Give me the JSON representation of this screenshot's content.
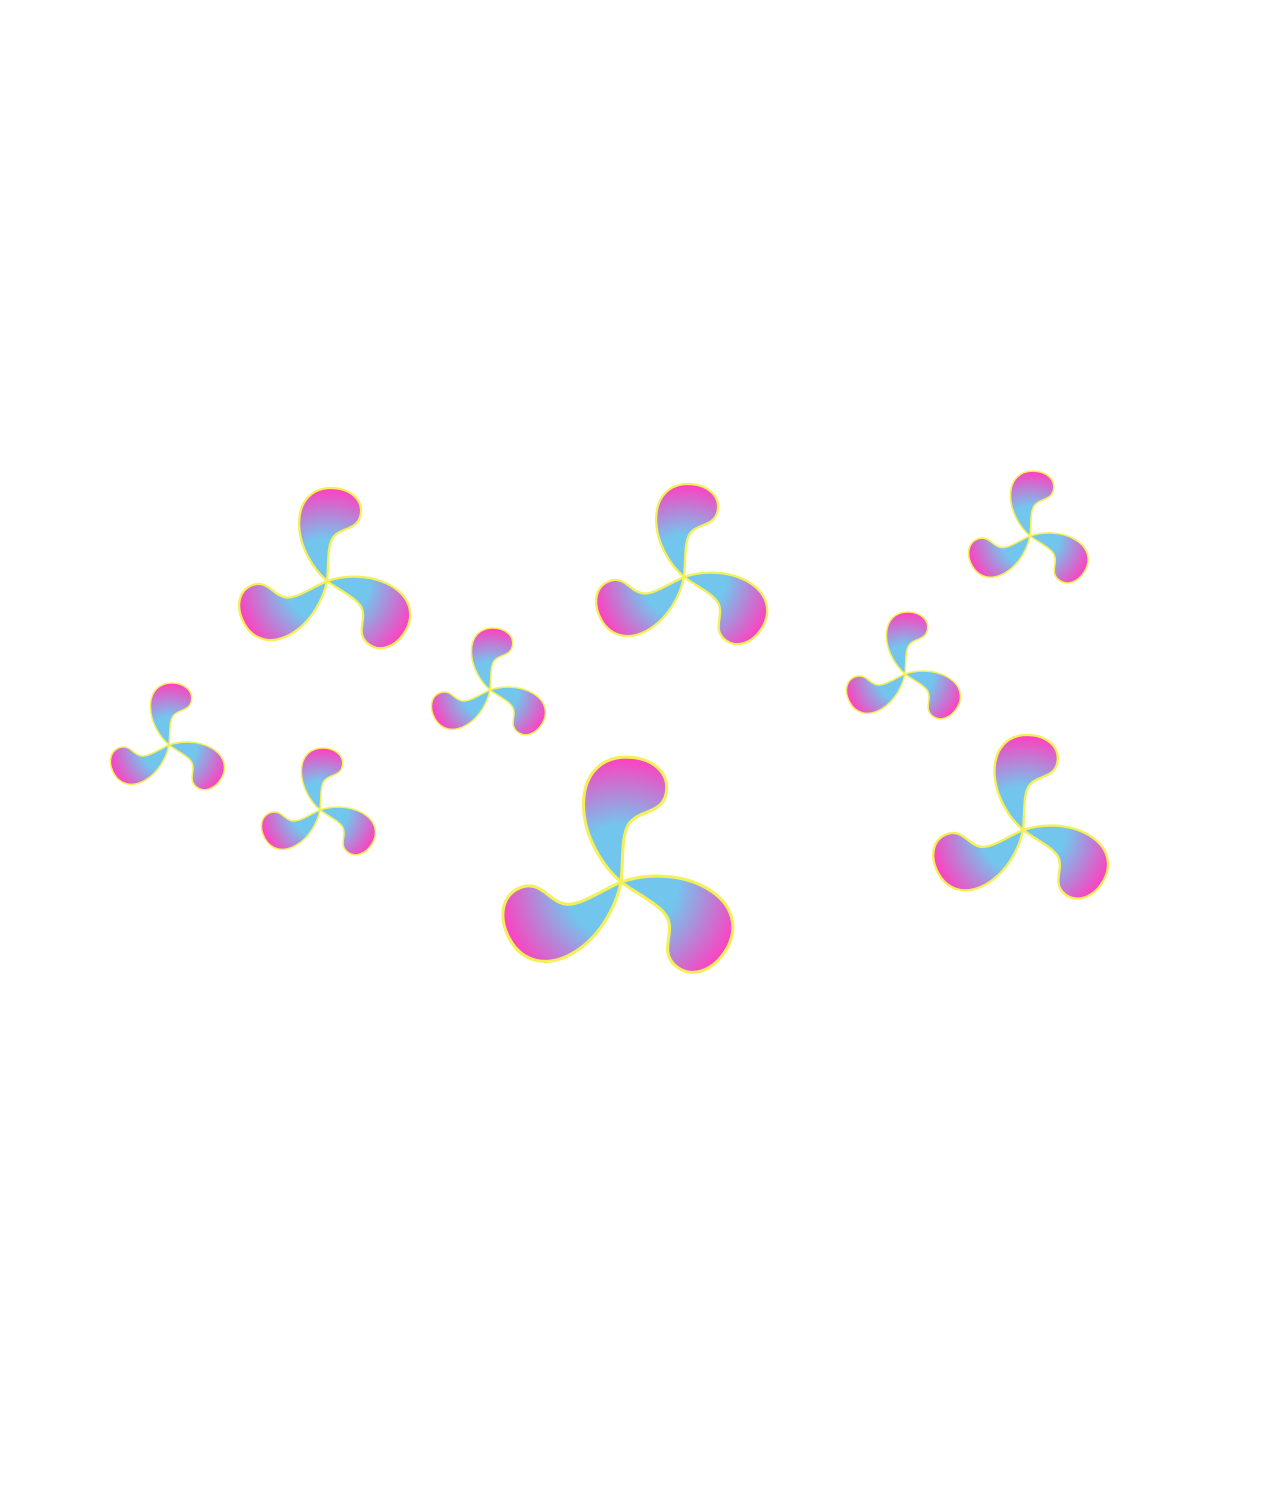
{
  "scene": {
    "background_color": "#ffffff",
    "motif": "triskele-icon",
    "motif_count": 9,
    "colors": {
      "petal_outer": "#ff3fbf",
      "petal_inner": "#72c6ee",
      "outline": "#f4f05a"
    }
  }
}
